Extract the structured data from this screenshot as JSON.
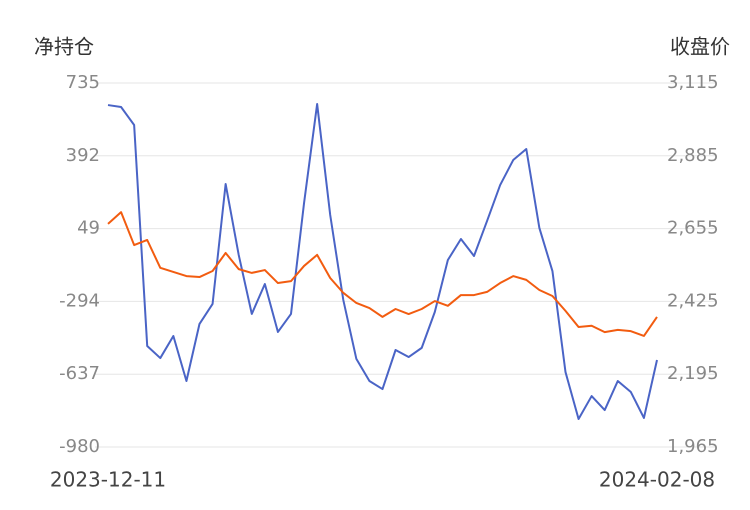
{
  "chart_data": {
    "type": "line",
    "y_title": "净持仓",
    "y2_title": "收盘价",
    "categories": [
      "2023-12-11",
      null,
      null,
      null,
      null,
      null,
      null,
      null,
      null,
      null,
      null,
      null,
      null,
      null,
      null,
      null,
      null,
      null,
      null,
      null,
      null,
      null,
      null,
      null,
      null,
      null,
      null,
      null,
      null,
      null,
      null,
      null,
      null,
      null,
      null,
      null,
      null,
      null,
      null,
      null,
      null,
      null,
      "2024-02-08"
    ],
    "series": [
      {
        "name": "净持仓",
        "color": "#4a64c6",
        "values": [
          631,
          622,
          537,
          -504,
          -561,
          -457,
          -669,
          -400,
          -306,
          259,
          -75,
          -353,
          -212,
          -438,
          -353,
          170,
          636,
          113,
          -287,
          -565,
          -669,
          -707,
          -523,
          -556,
          -513,
          -344,
          -99,
          0,
          -80,
          85,
          254,
          372,
          424,
          52,
          -151,
          -627,
          -848,
          -740,
          -806,
          -669,
          -721,
          -843,
          -570
        ]
      },
      {
        "name": "收盘价",
        "color": "#f25c10",
        "axis": "y2",
        "values": [
          2670,
          2707,
          2603,
          2619,
          2531,
          2518,
          2505,
          2502,
          2521,
          2578,
          2527,
          2515,
          2524,
          2483,
          2489,
          2537,
          2572,
          2499,
          2452,
          2420,
          2404,
          2376,
          2401,
          2385,
          2401,
          2426,
          2411,
          2445,
          2445,
          2455,
          2483,
          2505,
          2493,
          2461,
          2442,
          2395,
          2344,
          2348,
          2328,
          2335,
          2331,
          2316,
          2376
        ]
      }
    ],
    "ylim": [
      -980,
      735
    ],
    "yticks": [
      -980,
      -637,
      -294,
      49,
      392,
      735
    ],
    "y2lim": [
      1965,
      3115
    ],
    "y2ticks": [
      {
        "value": 1965,
        "label": "1,965"
      },
      {
        "value": 2195,
        "label": "2,195"
      },
      {
        "value": 2425,
        "label": "2,425"
      },
      {
        "value": 2655,
        "label": "2,655"
      },
      {
        "value": 2885,
        "label": "2,885"
      },
      {
        "value": 3115,
        "label": "3,115"
      }
    ],
    "grid": true
  }
}
